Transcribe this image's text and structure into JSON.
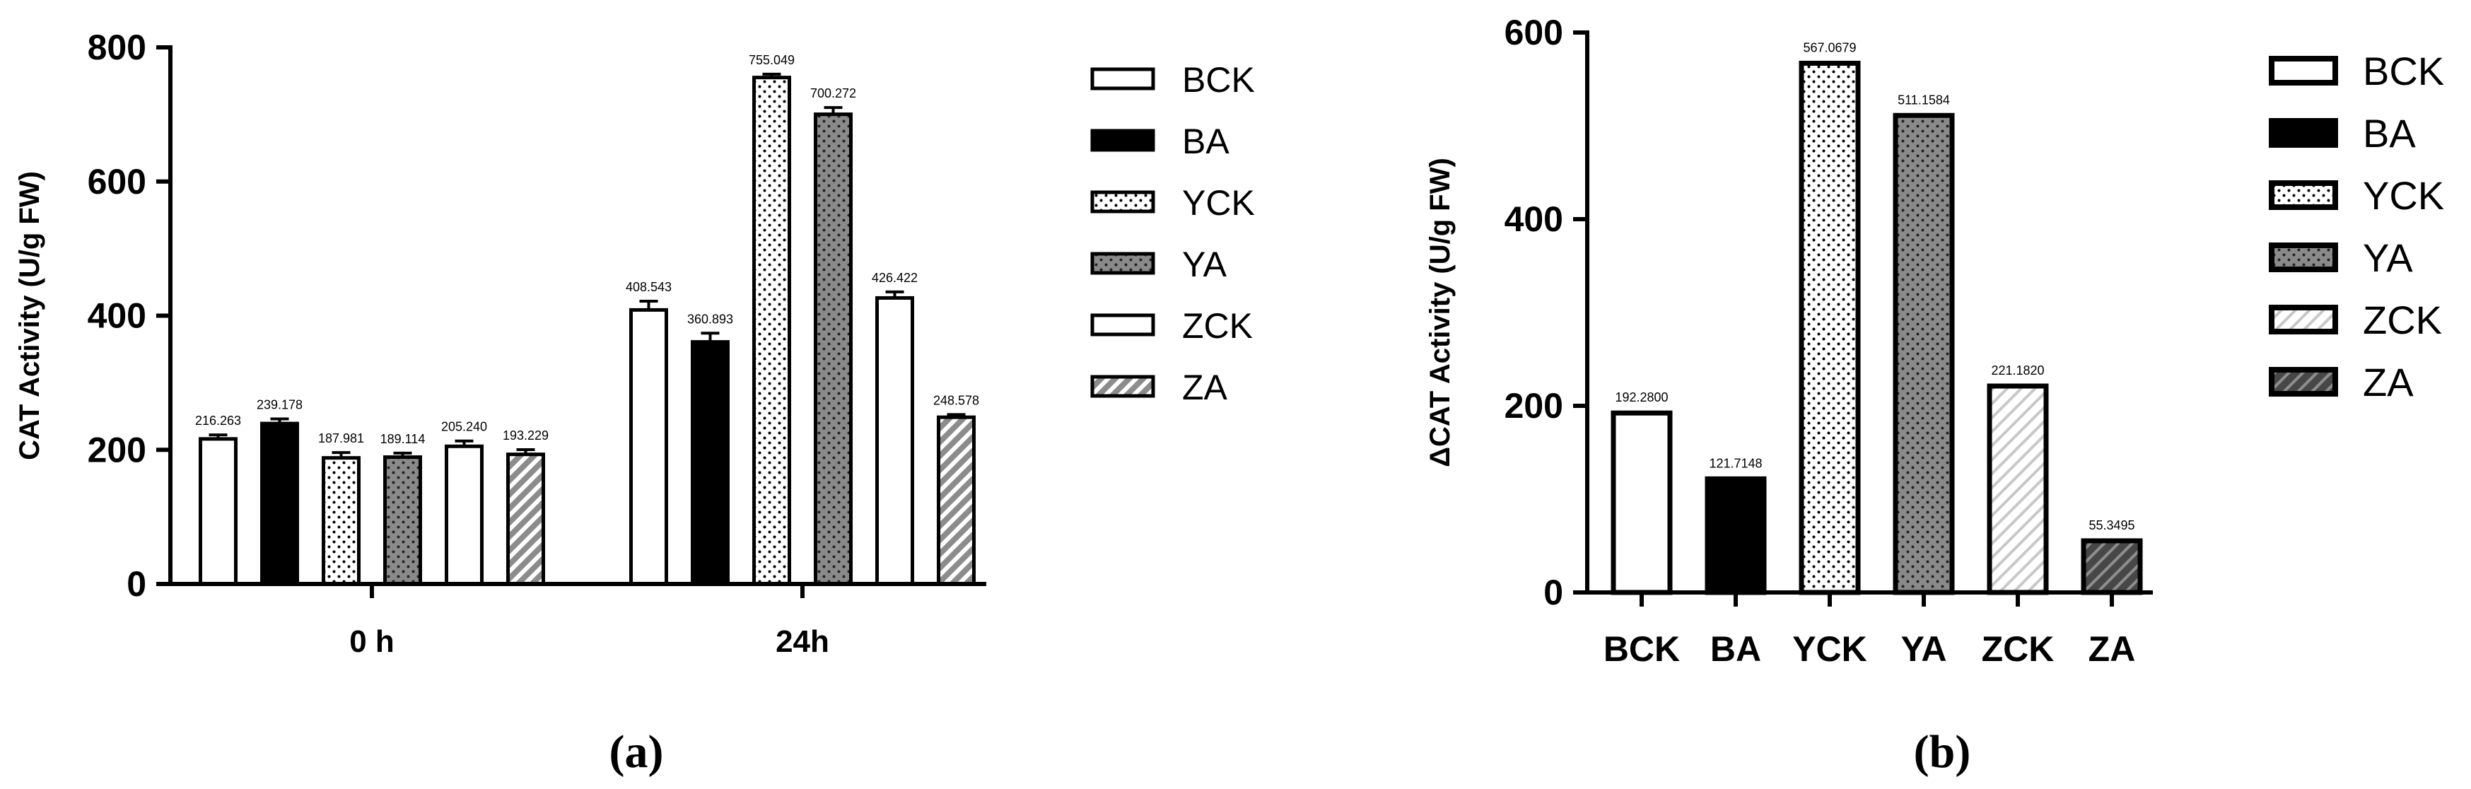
{
  "chart_data": [
    {
      "type": "bar",
      "caption": "(a)",
      "ylabel": "CAT Activity (U/g FW)",
      "ylim": [
        0,
        800
      ],
      "yticks": [
        "0",
        "200",
        "400",
        "600",
        "800"
      ],
      "categories": [
        "0 h",
        "24h"
      ],
      "series": [
        {
          "name": "BCK",
          "pattern": "white",
          "values": [
            216.263,
            408.543
          ],
          "errors": [
            6,
            13
          ],
          "labels": [
            "216.263",
            "408.543"
          ]
        },
        {
          "name": "BA",
          "pattern": "black",
          "values": [
            239.178,
            360.893
          ],
          "errors": [
            7,
            13
          ],
          "labels": [
            "239.178",
            "360.893"
          ]
        },
        {
          "name": "YCK",
          "pattern": "dots-light",
          "values": [
            187.981,
            755.049
          ],
          "errors": [
            8,
            5
          ],
          "labels": [
            "187.981",
            "755.049"
          ]
        },
        {
          "name": "YA",
          "pattern": "dots-gray",
          "values": [
            189.114,
            700.272
          ],
          "errors": [
            6,
            10
          ],
          "labels": [
            "189.114",
            "700.272"
          ]
        },
        {
          "name": "ZCK",
          "pattern": "white",
          "values": [
            205.24,
            426.422
          ],
          "errors": [
            8,
            9
          ],
          "labels": [
            "205.240",
            "426.422"
          ]
        },
        {
          "name": "ZA",
          "pattern": "hatch-gray",
          "values": [
            193.229,
            248.578
          ],
          "errors": [
            7,
            4
          ],
          "labels": [
            "193.229",
            "248.578"
          ]
        }
      ],
      "legend": [
        "BCK",
        "BA",
        "YCK",
        "YA",
        "ZCK",
        "ZA"
      ]
    },
    {
      "type": "bar",
      "caption": "(b)",
      "ylabel": "ΔCAT Activity (U/g FW)",
      "ylim": [
        0,
        600
      ],
      "yticks": [
        "0",
        "200",
        "400",
        "600"
      ],
      "categories": [
        "BCK",
        "BA",
        "YCK",
        "YA",
        "ZCK",
        "ZA"
      ],
      "values": [
        192.28,
        121.7148,
        567.0679,
        511.1584,
        221.182,
        55.3495
      ],
      "labels": [
        "192.2800",
        "121.7148",
        "567.0679",
        "511.1584",
        "221.1820",
        "55.3495"
      ],
      "patterns": [
        "white",
        "black",
        "dots-light",
        "dots-gray",
        "hatch-light",
        "hatch-dark"
      ],
      "legend": [
        "BCK",
        "BA",
        "YCK",
        "YA",
        "ZCK",
        "ZA"
      ]
    }
  ]
}
